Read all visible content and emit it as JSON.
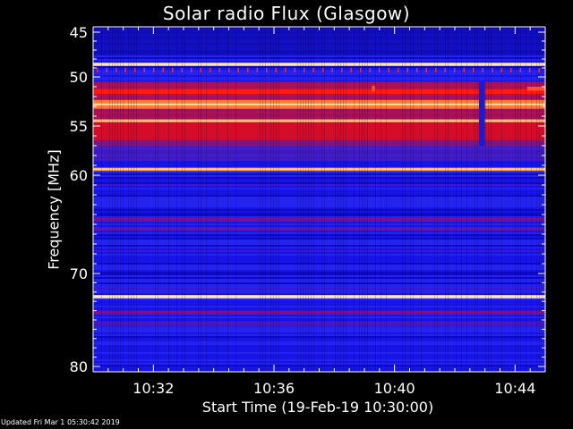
{
  "chart_data": {
    "type": "heatmap",
    "title": "Solar radio Flux (Glasgow)",
    "xlabel": "Start Time (19-Feb-19 10:30:00)",
    "ylabel": "Frequency [MHz]",
    "ylim": [
      45,
      80
    ],
    "y_axis_inverted": true,
    "xlim_minutes": [
      0,
      15
    ],
    "x_ticks": [
      {
        "label": "10:32",
        "minutes": 2
      },
      {
        "label": "10:36",
        "minutes": 6
      },
      {
        "label": "10:40",
        "minutes": 10
      },
      {
        "label": "10:44",
        "minutes": 14
      }
    ],
    "y_ticks": [
      45,
      50,
      55,
      60,
      70,
      80
    ],
    "y_tick_labels": [
      "45",
      "50",
      "55",
      "60",
      "70",
      "80"
    ],
    "colors": {
      "background": "#000000",
      "low": "#1a14e6",
      "mid": "#8a1078",
      "high": "#ff1a10",
      "peak": "#ffd080"
    },
    "bands": [
      {
        "mhz": 48.6,
        "width_mhz": 0.35,
        "intensity": 1.0
      },
      {
        "mhz": 51.5,
        "width_mhz": 0.5,
        "intensity": 0.75
      },
      {
        "mhz": 52.8,
        "width_mhz": 0.9,
        "intensity": 0.85
      },
      {
        "mhz": 54.5,
        "width_mhz": 0.4,
        "intensity": 0.9
      },
      {
        "mhz": 55.5,
        "width_mhz": 1.8,
        "intensity": 0.72
      },
      {
        "mhz": 59.4,
        "width_mhz": 0.35,
        "intensity": 0.88
      },
      {
        "mhz": 64.5,
        "width_mhz": 0.4,
        "intensity": 0.5
      },
      {
        "mhz": 65.5,
        "width_mhz": 0.3,
        "intensity": 0.48
      },
      {
        "mhz": 72.5,
        "width_mhz": 0.35,
        "intensity": 0.95
      },
      {
        "mhz": 74.2,
        "width_mhz": 0.4,
        "intensity": 0.5
      },
      {
        "mhz": 75.3,
        "width_mhz": 0.3,
        "intensity": 0.4
      }
    ],
    "events": [
      {
        "minutes_start": 12.8,
        "minutes_end": 13.0,
        "mhz_start": 50.5,
        "mhz_end": 57.0,
        "type": "dip"
      },
      {
        "minutes_start": 9.25,
        "minutes_end": 9.35,
        "mhz_start": 50.9,
        "mhz_end": 51.5,
        "type": "spike"
      },
      {
        "minutes_start": 14.4,
        "minutes_end": 15.0,
        "mhz_start": 51.0,
        "mhz_end": 51.4,
        "type": "spike"
      }
    ]
  },
  "footer": {
    "updated": "Updated Fri Mar  1 05:30:42 2019"
  }
}
